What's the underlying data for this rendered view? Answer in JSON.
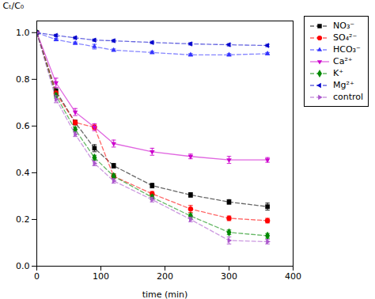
{
  "chart_data": {
    "type": "line",
    "xlabel": "time (min)",
    "ylabel": "Cₜ/C₀",
    "x": [
      0,
      30,
      60,
      90,
      120,
      180,
      240,
      300,
      360
    ],
    "xlim": [
      0,
      400
    ],
    "ylim": [
      0.0,
      1.05
    ],
    "xticks": [
      0,
      100,
      200,
      300,
      400
    ],
    "yticks": [
      {
        "value": 0.0,
        "label": "0.0"
      },
      0.2,
      0.4,
      0.6,
      0.8,
      {
        "value": 1.0,
        "label": "1.0"
      }
    ],
    "grid": false,
    "legend": "upper right",
    "series": [
      {
        "name": "NO₃⁻",
        "color": "black",
        "marker": "square",
        "line_style": "dashed",
        "values": [
          1.0,
          0.75,
          0.615,
          0.505,
          0.43,
          0.345,
          0.305,
          0.275,
          0.255
        ],
        "yerr": [
          0,
          0.01,
          0.01,
          0.015,
          0.01,
          0.01,
          0.01,
          0.01,
          0.015
        ]
      },
      {
        "name": "SO₄²⁻",
        "color": "red",
        "marker": "circle",
        "line_style": "dashed",
        "values": [
          1.0,
          0.74,
          0.615,
          0.595,
          0.385,
          0.31,
          0.245,
          0.205,
          0.195
        ],
        "yerr": [
          0,
          0.01,
          0.01,
          0.01,
          0.01,
          0.01,
          0.015,
          0.01,
          0.01
        ]
      },
      {
        "name": "HCO₃⁻",
        "color": "#3333ff",
        "marker": "triangle-up",
        "line_style": "dashed",
        "values": [
          1.0,
          0.97,
          0.955,
          0.94,
          0.925,
          0.915,
          0.905,
          0.905,
          0.91
        ],
        "yerr": [
          0,
          0.005,
          0.005,
          0.01,
          0.005,
          0.005,
          0.005,
          0.005,
          0.005
        ]
      },
      {
        "name": "Ca²⁺",
        "color": "#cc00cc",
        "marker": "triangle-down",
        "line_style": "solid",
        "values": [
          1.0,
          0.785,
          0.66,
          0.595,
          0.525,
          0.49,
          0.47,
          0.455,
          0.455
        ],
        "yerr": [
          0,
          0.02,
          0.015,
          0.015,
          0.015,
          0.015,
          0.01,
          0.015,
          0.01
        ]
      },
      {
        "name": "K⁺",
        "color": "#008800",
        "marker": "diamond",
        "line_style": "dashed",
        "values": [
          1.0,
          0.73,
          0.585,
          0.465,
          0.385,
          0.295,
          0.215,
          0.145,
          0.13
        ],
        "yerr": [
          0,
          0.01,
          0.01,
          0.01,
          0.01,
          0.01,
          0.01,
          0.01,
          0.01
        ]
      },
      {
        "name": "Mg²⁺",
        "color": "#0000cc",
        "marker": "triangle-left",
        "line_style": "dashed",
        "values": [
          1.0,
          0.988,
          0.978,
          0.968,
          0.965,
          0.958,
          0.952,
          0.948,
          0.945
        ],
        "yerr": [
          0,
          0.005,
          0.005,
          0.005,
          0.005,
          0.005,
          0.005,
          0.005,
          0.005
        ]
      },
      {
        "name": "control",
        "color": "#aa55cc",
        "marker": "triangle-right",
        "line_style": "dashed",
        "values": [
          1.0,
          0.715,
          0.565,
          0.44,
          0.365,
          0.285,
          0.2,
          0.11,
          0.105
        ],
        "yerr": [
          0,
          0.015,
          0.01,
          0.01,
          0.01,
          0.01,
          0.01,
          0.015,
          0.01
        ]
      }
    ]
  }
}
